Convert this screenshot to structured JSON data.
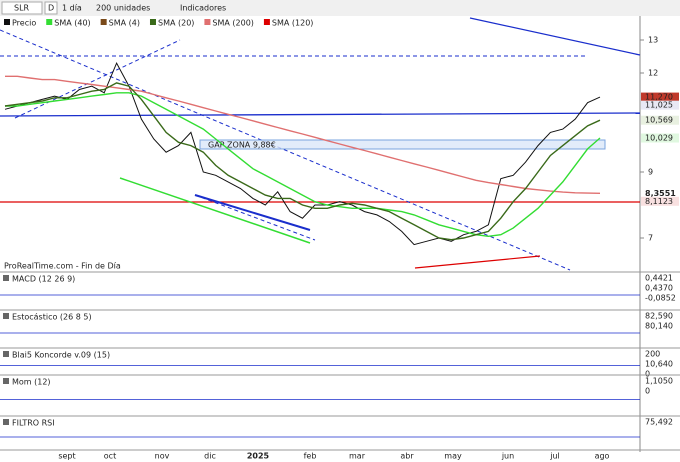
{
  "toolbar": {
    "symbol": "SLR",
    "mode": "D",
    "period": "1 día",
    "units": "200 unidades",
    "indicators": "Indicadores"
  },
  "legend": [
    "Precio",
    "SMA (40)",
    "SMA (4)",
    "SMA (20)",
    "SMA (200)",
    "SMA (120)"
  ],
  "main": {
    "yticks": [
      13,
      12,
      9,
      7
    ],
    "price_labels": [
      {
        "value": 11.27,
        "label": "11,270",
        "color": "#ffffff",
        "bg": "#c0392b"
      },
      {
        "value": 11.025,
        "label": "11,025",
        "color": "#222",
        "bg": "#e8e8f4"
      },
      {
        "value": 10.569,
        "label": "10,569",
        "color": "#222",
        "bg": "#e8f0e0"
      },
      {
        "value": 10.029,
        "label": "10,029",
        "color": "#222",
        "bg": "#e0f8e0"
      },
      {
        "value": 8.3551,
        "label": "8,3551",
        "color": "#1a8a1a",
        "bg": "#ffffff"
      },
      {
        "value": 8.1123,
        "label": "8,1123",
        "color": "#222",
        "bg": "#f8e0e0"
      }
    ],
    "annotation": "GAP ZONA 9,88€",
    "source": "ProRealTime.com - Fin de Día",
    "series": [
      {
        "name": "Precio",
        "color": "#111111",
        "values": [
          10.9,
          11.0,
          11.1,
          11.2,
          11.3,
          11.2,
          11.5,
          11.6,
          11.4,
          12.3,
          11.6,
          10.6,
          10.0,
          9.6,
          9.8,
          10.2,
          9.0,
          8.9,
          8.7,
          8.5,
          8.2,
          8.0,
          8.4,
          7.8,
          7.6,
          8.0,
          8.0,
          8.1,
          8.0,
          7.8,
          7.7,
          7.5,
          7.2,
          6.8,
          6.9,
          7.0,
          6.9,
          7.1,
          7.2,
          7.4,
          8.8,
          8.9,
          9.3,
          9.8,
          10.2,
          10.3,
          10.6,
          11.1,
          11.27
        ]
      },
      {
        "name": "SMA (200)",
        "color": "#e07070",
        "values": [
          11.9,
          11.9,
          11.85,
          11.8,
          11.8,
          11.75,
          11.7,
          11.65,
          11.6,
          11.55,
          11.5,
          11.45,
          11.35,
          11.25,
          11.15,
          11.05,
          10.95,
          10.85,
          10.75,
          10.65,
          10.55,
          10.45,
          10.35,
          10.25,
          10.15,
          10.05,
          9.95,
          9.85,
          9.75,
          9.65,
          9.55,
          9.45,
          9.35,
          9.25,
          9.15,
          9.05,
          8.95,
          8.85,
          8.75,
          8.68,
          8.62,
          8.56,
          8.5,
          8.46,
          8.42,
          8.39,
          8.37,
          8.36,
          8.3551
        ]
      },
      {
        "name": "SMA (40)",
        "color": "#33dd33",
        "values": [
          11.0,
          11.0,
          11.05,
          11.1,
          11.15,
          11.2,
          11.25,
          11.3,
          11.35,
          11.4,
          11.4,
          11.3,
          11.1,
          10.9,
          10.7,
          10.5,
          10.3,
          10.0,
          9.7,
          9.4,
          9.1,
          8.9,
          8.7,
          8.5,
          8.3,
          8.1,
          8.0,
          7.95,
          7.9,
          7.9,
          7.9,
          7.85,
          7.8,
          7.7,
          7.55,
          7.4,
          7.3,
          7.2,
          7.1,
          7.05,
          7.1,
          7.3,
          7.6,
          7.9,
          8.3,
          8.7,
          9.2,
          9.7,
          10.029
        ]
      },
      {
        "name": "SMA (20)",
        "color": "#3a6a1a",
        "values": [
          11.0,
          11.05,
          11.1,
          11.15,
          11.25,
          11.25,
          11.35,
          11.45,
          11.5,
          11.7,
          11.6,
          11.2,
          10.7,
          10.2,
          9.9,
          9.8,
          9.6,
          9.2,
          8.9,
          8.7,
          8.5,
          8.3,
          8.2,
          8.2,
          8.0,
          7.9,
          7.9,
          8.0,
          8.05,
          8.0,
          7.9,
          7.8,
          7.6,
          7.4,
          7.2,
          7.0,
          6.95,
          7.0,
          7.1,
          7.2,
          7.6,
          8.1,
          8.5,
          9.0,
          9.5,
          9.8,
          10.1,
          10.4,
          10.569
        ]
      }
    ]
  },
  "panels": [
    {
      "name": "MACD (12 26 9)",
      "labels": [
        "0,4421",
        "0,4370",
        "-0,0852"
      ]
    },
    {
      "name": "Estocástico (26 8 5)",
      "labels": [
        "82,590",
        "80,140"
      ]
    },
    {
      "name": "Blai5 Koncorde v.09 (15)",
      "labels": [
        "200",
        "10,640",
        "0"
      ]
    },
    {
      "name": "Mom (12)",
      "labels": [
        "1,1050",
        "0"
      ]
    },
    {
      "name": "FILTRO RSI",
      "labels": [
        "75,492"
      ]
    }
  ],
  "months": [
    "sept",
    "oct",
    "nov",
    "dic",
    "2025",
    "feb",
    "mar",
    "abr",
    "may",
    "jun",
    "jul",
    "ago"
  ]
}
